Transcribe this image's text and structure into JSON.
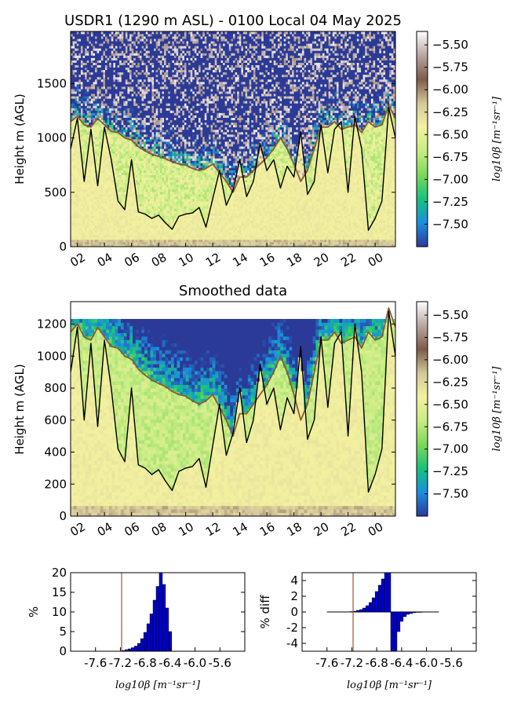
{
  "figure": {
    "title": "USDR1 (1290 m ASL) - 0100 Local 04 May 2025",
    "subtitle": "Smoothed data"
  },
  "colors": {
    "trace_black": "#000000",
    "trace_brown": "#8B5A2B",
    "bars": "#0000cc",
    "threshold_line": "#a0522d",
    "colormap": [
      "#2b3a97",
      "#1a8fe0",
      "#17c27a",
      "#7dd85a",
      "#c8ec84",
      "#f3f1a0",
      "#d3c89a",
      "#7f5a4a",
      "#b9a6a1",
      "#ffffff"
    ]
  },
  "chart_data": [
    {
      "type": "heatmap",
      "name": "top",
      "title": "USDR1 (1290 m ASL) - 0100 Local 04 May 2025",
      "xlabel": "",
      "ylabel": "Height m (AGL)",
      "x_ticklabels": [
        "02",
        "04",
        "06",
        "08",
        "10",
        "12",
        "14",
        "16",
        "18",
        "20",
        "22",
        "00"
      ],
      "y_ticks": [
        0,
        500,
        1000,
        1500
      ],
      "y_ticklabels": [
        "0",
        "500",
        "1000",
        "1500"
      ],
      "ylim": [
        0,
        1980
      ],
      "x_hours": [
        1.5,
        25.5
      ],
      "colorbar": {
        "label": "log10β [m⁻¹sr⁻¹]",
        "range": [
          -7.75,
          -5.35
        ],
        "ticks": [
          -7.5,
          -7.25,
          -7.0,
          -6.75,
          -6.5,
          -6.25,
          -6.0,
          -5.75,
          -5.5
        ],
        "ticklabels": [
          "−7.50",
          "−7.25",
          "−7.00",
          "−6.75",
          "−6.50",
          "−6.25",
          "−6.00",
          "−5.75",
          "−5.50"
        ]
      },
      "traces": [
        {
          "kind": "black",
          "x": [
            1.5,
            2.0,
            2.5,
            3.0,
            3.5,
            4.0,
            4.5,
            5.0,
            5.5,
            6.0,
            6.5,
            7.0,
            7.5,
            8.0,
            8.5,
            9.0,
            9.5,
            10.0,
            10.5,
            11.0,
            11.5,
            12.0,
            12.5,
            13.0,
            13.5,
            14.0,
            14.5,
            15.0,
            15.5,
            16.0,
            16.5,
            17.0,
            17.5,
            18.0,
            18.5,
            19.0,
            19.5,
            20.0,
            20.5,
            21.0,
            21.5,
            22.0,
            22.5,
            23.0,
            23.5,
            24.0,
            24.5,
            25.0,
            25.5
          ],
          "y": [
            900,
            1180,
            600,
            1080,
            560,
            1100,
            800,
            420,
            340,
            800,
            320,
            300,
            260,
            290,
            220,
            160,
            280,
            300,
            310,
            360,
            180,
            440,
            700,
            380,
            520,
            800,
            460,
            600,
            950,
            700,
            800,
            540,
            740,
            640,
            1060,
            480,
            600,
            1120,
            680,
            1080,
            1150,
            500,
            1200,
            900,
            150,
            260,
            420,
            1280,
            1000
          ]
        },
        {
          "kind": "brown",
          "x": [
            1.5,
            2.0,
            2.5,
            3.0,
            3.5,
            4.0,
            4.5,
            5.0,
            5.5,
            6.0,
            6.5,
            7.0,
            7.5,
            8.0,
            8.5,
            9.0,
            9.5,
            10.0,
            10.5,
            11.0,
            11.5,
            12.0,
            12.5,
            13.0,
            13.5,
            14.0,
            14.5,
            15.0,
            15.5,
            16.0,
            16.5,
            17.0,
            17.5,
            18.0,
            18.5,
            19.0,
            19.5,
            20.0,
            20.5,
            21.0,
            21.5,
            22.0,
            22.5,
            23.0,
            23.5,
            24.0,
            24.5,
            25.0,
            25.5
          ],
          "y": [
            1150,
            1200,
            1120,
            1100,
            1180,
            1120,
            1060,
            1050,
            1000,
            980,
            920,
            880,
            850,
            830,
            810,
            780,
            760,
            750,
            720,
            700,
            720,
            760,
            680,
            600,
            500,
            640,
            640,
            700,
            760,
            820,
            900,
            1000,
            900,
            760,
            600,
            700,
            900,
            1100,
            1100,
            1150,
            1080,
            1100,
            1120,
            1050,
            1150,
            1100,
            1120,
            1300,
            1180
          ]
        }
      ]
    },
    {
      "type": "heatmap",
      "name": "smoothed",
      "title": "Smoothed data",
      "ylabel": "Height m (AGL)",
      "x_ticklabels": [
        "02",
        "04",
        "06",
        "08",
        "10",
        "12",
        "14",
        "16",
        "18",
        "20",
        "22",
        "00"
      ],
      "y_ticks": [
        0,
        200,
        400,
        600,
        800,
        1000,
        1200
      ],
      "y_ticklabels": [
        "0",
        "200",
        "400",
        "600",
        "800",
        "1000",
        "1200"
      ],
      "ylim": [
        0,
        1340
      ],
      "data_top": 1230,
      "colorbar": {
        "label": "log10β [m⁻¹sr⁻¹]",
        "range": [
          -7.75,
          -5.35
        ],
        "ticks": [
          -7.5,
          -7.25,
          -7.0,
          -6.75,
          -6.5,
          -6.25,
          -6.0,
          -5.75,
          -5.5
        ],
        "ticklabels": [
          "−7.50",
          "−7.25",
          "−7.00",
          "−6.75",
          "−6.50",
          "−6.25",
          "−6.00",
          "−5.75",
          "−5.50"
        ]
      }
    },
    {
      "type": "bar",
      "name": "histogram",
      "xlabel": "log10β [m⁻¹sr⁻¹]",
      "ylabel": "%",
      "x_ticklabels": [
        "-7.6",
        "-7.2",
        "-6.8",
        "-6.4",
        "-6.0",
        "-5.6"
      ],
      "x_ticks": [
        -7.6,
        -7.2,
        -6.8,
        -6.4,
        -6.0,
        -5.6
      ],
      "xlim": [
        -8.0,
        -5.2
      ],
      "ylim": [
        0,
        20
      ],
      "y_ticks": [
        0,
        5,
        10,
        15,
        20
      ],
      "threshold": -7.18,
      "bin_width": 0.05,
      "x": [
        -7.15,
        -7.1,
        -7.05,
        -7.0,
        -6.95,
        -6.9,
        -6.85,
        -6.8,
        -6.75,
        -6.7,
        -6.65,
        -6.6,
        -6.55,
        -6.5,
        -6.45,
        -6.4
      ],
      "values": [
        0.2,
        0.4,
        0.6,
        0.9,
        1.3,
        2.0,
        3.2,
        4.8,
        7.0,
        9.5,
        13.0,
        16.5,
        20,
        17.0,
        11.0,
        5.0
      ]
    },
    {
      "type": "bar",
      "name": "difference",
      "xlabel": "log10β [m⁻¹sr⁻¹]",
      "ylabel": "% diff",
      "x_ticklabels": [
        "-7.6",
        "-7.2",
        "-6.8",
        "-6.4",
        "-6.0",
        "-5.6"
      ],
      "x_ticks": [
        -7.6,
        -7.2,
        -6.8,
        -6.4,
        -6.0,
        -5.6
      ],
      "xlim": [
        -8.0,
        -5.2
      ],
      "ylim": [
        -5,
        5
      ],
      "y_ticks": [
        4,
        2,
        0,
        -2,
        -4
      ],
      "threshold": -7.18,
      "bin_width": 0.05,
      "x": [
        -7.2,
        -7.15,
        -7.1,
        -7.05,
        -7.0,
        -6.95,
        -6.9,
        -6.85,
        -6.8,
        -6.75,
        -6.7,
        -6.65,
        -6.6,
        -6.55,
        -6.5,
        -6.45,
        -6.4,
        -6.35,
        -6.3,
        -6.25,
        -6.2,
        -6.15,
        -6.1
      ],
      "values": [
        0.05,
        0.1,
        0.2,
        0.3,
        0.5,
        0.8,
        1.2,
        1.8,
        2.6,
        3.4,
        4.2,
        5.0,
        5.0,
        -5.0,
        -5.0,
        -2.5,
        -1.2,
        -0.6,
        -0.3,
        -0.2,
        -0.1,
        -0.05,
        -0.02
      ]
    }
  ]
}
